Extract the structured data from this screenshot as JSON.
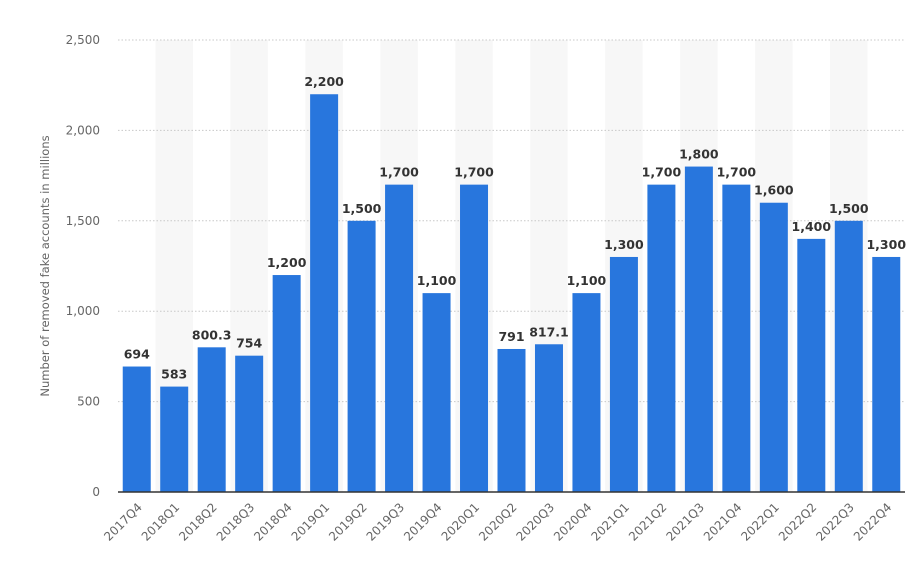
{
  "chart_data": {
    "type": "bar",
    "title": "",
    "xlabel": "",
    "ylabel": "Number of removed fake accounts in millions",
    "ylim": [
      0,
      2500
    ],
    "yticks": [
      0,
      500,
      1000,
      1500,
      2000,
      2500
    ],
    "ytick_labels": [
      "0",
      "500",
      "1,000",
      "1,500",
      "2,000",
      "2,500"
    ],
    "grid": true,
    "categories": [
      "2017Q4",
      "2018Q1",
      "2018Q2",
      "2018Q3",
      "2018Q4",
      "2019Q1",
      "2019Q2",
      "2019Q3",
      "2019Q4",
      "2020Q1",
      "2020Q2",
      "2020Q3",
      "2020Q4",
      "2021Q1",
      "2021Q2",
      "2021Q3",
      "2021Q4",
      "2022Q1",
      "2022Q2",
      "2022Q3",
      "2022Q4"
    ],
    "values": [
      694,
      583,
      800.3,
      754,
      1200,
      2200,
      1500,
      1700,
      1100,
      1700,
      791,
      817.1,
      1100,
      1300,
      1700,
      1800,
      1700,
      1600,
      1400,
      1500,
      1300
    ],
    "value_labels": [
      "694",
      "583",
      "800.3",
      "754",
      "1,200",
      "2,200",
      "1,500",
      "1,700",
      "1,100",
      "1,700",
      "791",
      "817.1",
      "1,100",
      "1,300",
      "1,700",
      "1,800",
      "1,700",
      "1,600",
      "1,400",
      "1,500",
      "1,300"
    ],
    "colors": {
      "bar": "#2876dd",
      "band": "#f7f7f7",
      "grid": "#c8c8c8",
      "axis": "#333333"
    }
  }
}
